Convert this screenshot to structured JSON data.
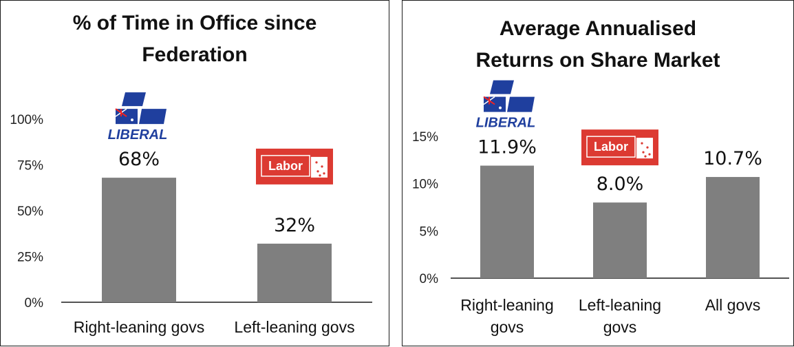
{
  "colors": {
    "bar": "#7f7f7f",
    "axis": "#1a1a1a",
    "liberal_blue": "#1f3f9e",
    "labor_red": "#dc3a32"
  },
  "logos": {
    "liberal": "LIBERAL",
    "labor": "Labor"
  },
  "chart_data": [
    {
      "type": "bar",
      "title": "% of Time in Office since Federation",
      "title_lines": [
        "% of Time in Office since",
        "Federation"
      ],
      "categories": [
        "Right-leaning govs",
        "Left-leaning govs"
      ],
      "category_lines": [
        [
          "Right-leaning govs"
        ],
        [
          "Left-leaning govs"
        ]
      ],
      "values": [
        68,
        32
      ],
      "data_labels": [
        "68%",
        "32%"
      ],
      "yticks": [
        "0%",
        "25%",
        "50%",
        "75%",
        "100%"
      ],
      "ylim": [
        0,
        100
      ],
      "grid": false,
      "legend": "none",
      "logos": [
        "liberal",
        "labor"
      ]
    },
    {
      "type": "bar",
      "title": "Average Annualised Returns on Share Market",
      "title_lines": [
        "Average Annualised",
        "Returns on Share Market"
      ],
      "categories": [
        "Right-leaning govs",
        "Left-leaning govs",
        "All govs"
      ],
      "category_lines": [
        [
          "Right-leaning",
          "govs"
        ],
        [
          "Left-leaning",
          "govs"
        ],
        [
          "All govs"
        ]
      ],
      "values": [
        11.9,
        8.0,
        10.7
      ],
      "data_labels": [
        "11.9%",
        "8.0%",
        "10.7%"
      ],
      "yticks": [
        "0%",
        "5%",
        "10%",
        "15%"
      ],
      "ylim": [
        0,
        15
      ],
      "grid": false,
      "legend": "none",
      "logos": [
        "liberal",
        "labor",
        null
      ]
    }
  ]
}
